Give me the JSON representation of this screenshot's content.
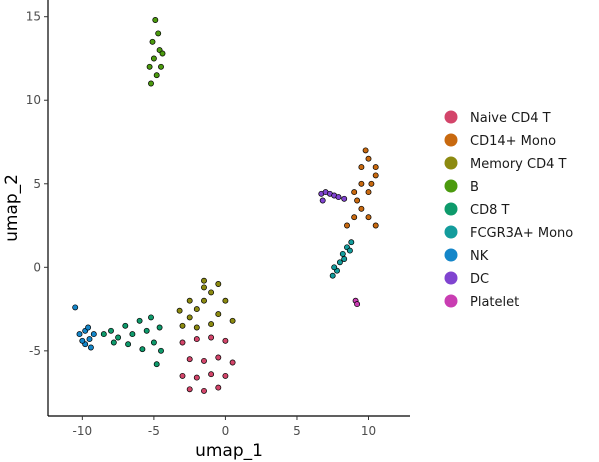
{
  "chart_data": {
    "type": "scatter",
    "title": "",
    "xlabel": "umap_1",
    "ylabel": "umap_2",
    "xlim": [
      -12.4,
      12.9
    ],
    "ylim": [
      -8.9,
      16.0
    ],
    "xticks": [
      -10,
      -5,
      0,
      5,
      10
    ],
    "yticks": [
      -5,
      0,
      5,
      10,
      15
    ],
    "xtick_labels": [
      "-10",
      "-5",
      "0",
      "5",
      "10"
    ],
    "ytick_labels": [
      "-5",
      "0",
      "5",
      "10",
      "15"
    ],
    "grid": false,
    "legend_position": "right",
    "point_outline_color": "#000000",
    "series": [
      {
        "name": "Naive CD4 T",
        "color": "#D3456A",
        "x": [
          -3.0,
          -2.0,
          -1.0,
          0.0,
          -2.5,
          -1.5,
          -0.5,
          0.5,
          -3.0,
          -2.0,
          -1.0,
          0.0,
          -2.5,
          -1.5,
          -0.5
        ],
        "y": [
          -4.5,
          -4.3,
          -4.2,
          -4.4,
          -5.5,
          -5.6,
          -5.4,
          -5.7,
          -6.5,
          -6.6,
          -6.4,
          -6.5,
          -7.3,
          -7.4,
          -7.2
        ]
      },
      {
        "name": "CD14+ Mono",
        "color": "#C8690F",
        "x": [
          8.5,
          9.0,
          9.5,
          10.0,
          10.5,
          9.0,
          9.5,
          10.0,
          10.5,
          9.5,
          10.0,
          10.5,
          9.8,
          10.2,
          9.2
        ],
        "y": [
          2.5,
          3.0,
          3.5,
          3.0,
          2.5,
          4.5,
          5.0,
          4.5,
          5.5,
          6.0,
          6.5,
          6.0,
          7.0,
          5.0,
          4.0
        ]
      },
      {
        "name": "Memory CD4 T",
        "color": "#8C8A10",
        "x": [
          -3.0,
          -2.5,
          -2.0,
          -1.5,
          -1.0,
          -0.5,
          0.0,
          -2.5,
          -1.5,
          -0.5,
          -2.0,
          -1.0,
          -1.5,
          0.5,
          -3.2
        ],
        "y": [
          -3.5,
          -3.0,
          -2.5,
          -2.0,
          -1.5,
          -1.0,
          -2.0,
          -2.0,
          -1.2,
          -2.8,
          -3.6,
          -3.4,
          -0.8,
          -3.2,
          -2.6
        ]
      },
      {
        "name": "B",
        "color": "#4B9A0E",
        "x": [
          -5.2,
          -4.8,
          -4.5,
          -5.0,
          -4.6,
          -5.1,
          -4.7,
          -5.3,
          -4.9,
          -4.4
        ],
        "y": [
          11.0,
          11.5,
          12.0,
          12.5,
          13.0,
          13.5,
          14.0,
          12.0,
          14.8,
          12.8
        ]
      },
      {
        "name": "CD8 T",
        "color": "#0E9A6B",
        "x": [
          -8.5,
          -8.0,
          -7.5,
          -7.0,
          -6.5,
          -6.0,
          -5.5,
          -5.0,
          -4.5,
          -6.8,
          -5.8,
          -7.8,
          -4.8,
          -5.2,
          -4.6
        ],
        "y": [
          -4.0,
          -3.8,
          -4.2,
          -3.5,
          -4.0,
          -3.2,
          -3.8,
          -4.5,
          -5.0,
          -4.6,
          -4.9,
          -4.5,
          -5.8,
          -3.0,
          -3.6
        ]
      },
      {
        "name": "FCGR3A+ Mono",
        "color": "#139C9C",
        "x": [
          7.5,
          7.8,
          8.0,
          8.2,
          8.5,
          8.8,
          7.6,
          8.3,
          8.7
        ],
        "y": [
          -0.5,
          -0.2,
          0.3,
          0.8,
          1.2,
          1.5,
          0.0,
          0.5,
          1.0
        ]
      },
      {
        "name": "NK",
        "color": "#1486C9",
        "x": [
          -10.2,
          -9.8,
          -9.5,
          -9.2,
          -9.8,
          -9.4,
          -10.0,
          -9.6,
          -10.5
        ],
        "y": [
          -4.0,
          -3.8,
          -4.3,
          -4.0,
          -4.6,
          -4.8,
          -4.4,
          -3.6,
          -2.4
        ]
      },
      {
        "name": "DC",
        "color": "#8044D0",
        "x": [
          6.7,
          7.0,
          7.3,
          7.6,
          7.9,
          8.3,
          6.8
        ],
        "y": [
          4.4,
          4.5,
          4.4,
          4.3,
          4.2,
          4.1,
          4.0
        ]
      },
      {
        "name": "Platelet",
        "color": "#C93DB2",
        "x": [
          9.1,
          9.2
        ],
        "y": [
          -2.0,
          -2.2
        ]
      }
    ]
  }
}
